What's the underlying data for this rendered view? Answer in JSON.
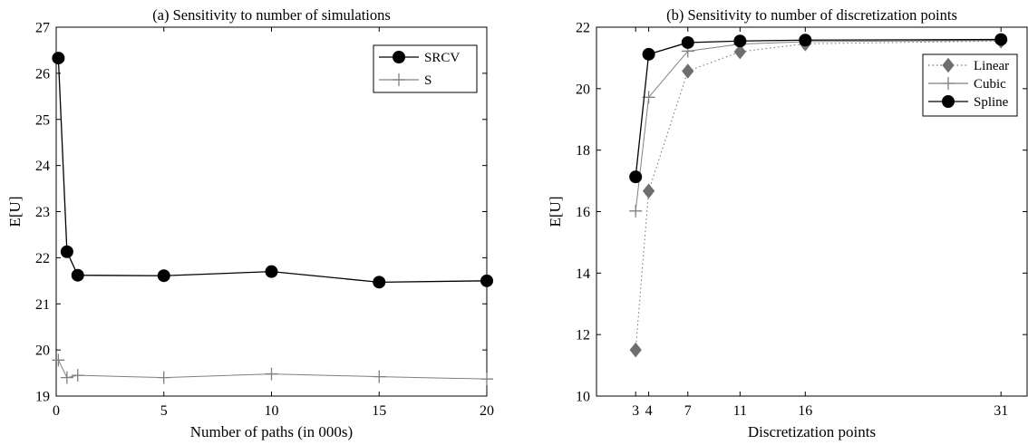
{
  "chart_data": [
    {
      "type": "line",
      "title": "(a) Sensitivity to number of simulations",
      "xlabel": "Number of paths (in 000s)",
      "ylabel": "E[U]",
      "xlim": [
        0,
        20
      ],
      "ylim": [
        19,
        27
      ],
      "xticks": [
        0,
        5,
        10,
        15,
        20
      ],
      "yticks": [
        19,
        20,
        21,
        22,
        23,
        24,
        25,
        26,
        27
      ],
      "legend_position": "top-right",
      "grid": false,
      "series": [
        {
          "name": "SRCV",
          "color": "#000000",
          "marker": "circle",
          "dash": "solid",
          "x": [
            0.1,
            0.5,
            1,
            5,
            10,
            15,
            20
          ],
          "y": [
            26.33,
            22.13,
            21.62,
            21.61,
            21.7,
            21.47,
            21.5
          ]
        },
        {
          "name": "S",
          "color": "#808080",
          "marker": "plus",
          "dash": "solid",
          "x": [
            0.1,
            0.5,
            1,
            5,
            10,
            15,
            20
          ],
          "y": [
            19.78,
            19.4,
            19.45,
            19.4,
            19.48,
            19.42,
            19.37
          ]
        }
      ]
    },
    {
      "type": "line",
      "title": "(b) Sensitivity to number of discretization points",
      "xlabel": "Discretization points",
      "ylabel": "E[U]",
      "xlim": [
        0,
        33
      ],
      "ylim": [
        10,
        22
      ],
      "xticks": [
        3,
        4,
        7,
        11,
        16,
        31
      ],
      "yticks": [
        10,
        12,
        14,
        16,
        18,
        20,
        22
      ],
      "legend_position": "top-right",
      "grid": false,
      "series": [
        {
          "name": "Linear",
          "color": "#6e6e6e",
          "marker": "diamond",
          "dash": "dotted",
          "x": [
            3,
            4,
            7,
            11,
            16,
            31
          ],
          "y": [
            11.5,
            16.67,
            20.57,
            21.2,
            21.46,
            21.55
          ]
        },
        {
          "name": "Cubic",
          "color": "#808080",
          "marker": "plus",
          "dash": "solid",
          "x": [
            3,
            4,
            7,
            11,
            16,
            31
          ],
          "y": [
            16.02,
            19.72,
            21.22,
            21.45,
            21.53,
            21.57
          ]
        },
        {
          "name": "Spline",
          "color": "#000000",
          "marker": "circle",
          "dash": "solid",
          "x": [
            3,
            4,
            7,
            11,
            16,
            31
          ],
          "y": [
            17.13,
            21.12,
            21.5,
            21.55,
            21.58,
            21.6
          ]
        }
      ]
    }
  ]
}
